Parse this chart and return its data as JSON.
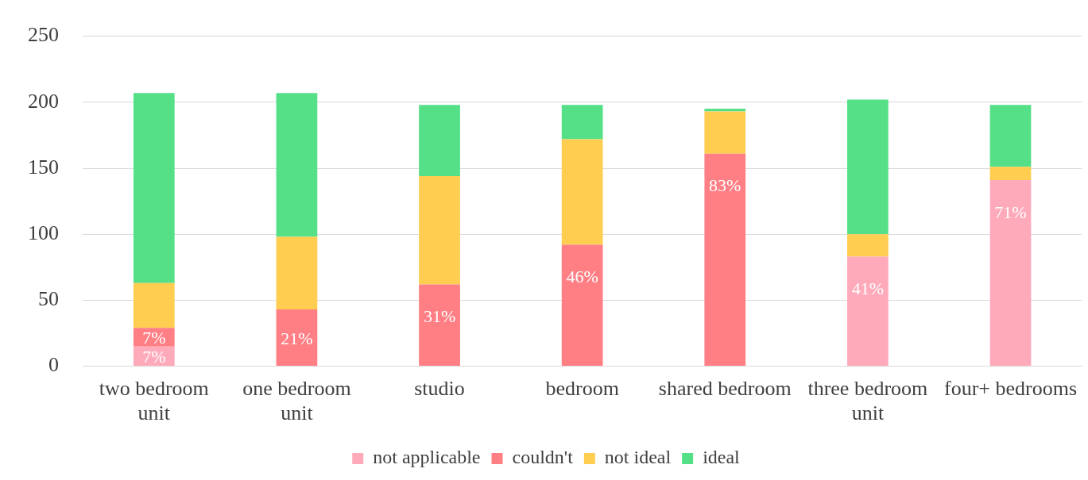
{
  "chart_data": {
    "type": "bar",
    "stacked": true,
    "categories": [
      "two bedroom unit",
      "one bedroom unit",
      "studio",
      "bedroom",
      "shared bedroom",
      "three bedroom unit",
      "four+ bedrooms"
    ],
    "series": [
      {
        "name": "not applicable",
        "color": "#ffaabb",
        "values": [
          15,
          0,
          0,
          0,
          0,
          83,
          141
        ]
      },
      {
        "name": "couldn't",
        "color": "#ff7f85",
        "values": [
          14,
          43,
          62,
          92,
          161,
          0,
          0
        ]
      },
      {
        "name": "not ideal",
        "color": "#ffcd4f",
        "values": [
          34,
          55,
          82,
          80,
          32,
          17,
          10
        ]
      },
      {
        "name": "ideal",
        "color": "#55e088",
        "values": [
          144,
          109,
          54,
          26,
          2,
          102,
          47
        ]
      }
    ],
    "annotations": [
      {
        "text": "7%",
        "x": "two bedroom unit",
        "y": 15
      },
      {
        "text": "7%",
        "x": "two bedroom unit",
        "y": 29
      },
      {
        "text": "21%",
        "x": "one bedroom unit",
        "y": 43
      },
      {
        "text": "31%",
        "x": "studio",
        "y": 62
      },
      {
        "text": "46%",
        "x": "bedroom",
        "y": 92
      },
      {
        "text": "83%",
        "x": "shared bedroom",
        "y": 161
      },
      {
        "text": "41%",
        "x": "three bedroom unit",
        "y": 83
      },
      {
        "text": "71%",
        "x": "four+ bedrooms",
        "y": 141
      }
    ],
    "ylim": [
      0,
      250
    ],
    "yticks": [
      0,
      50,
      100,
      150,
      200,
      250
    ],
    "grid": "y",
    "legend": "bottom"
  }
}
